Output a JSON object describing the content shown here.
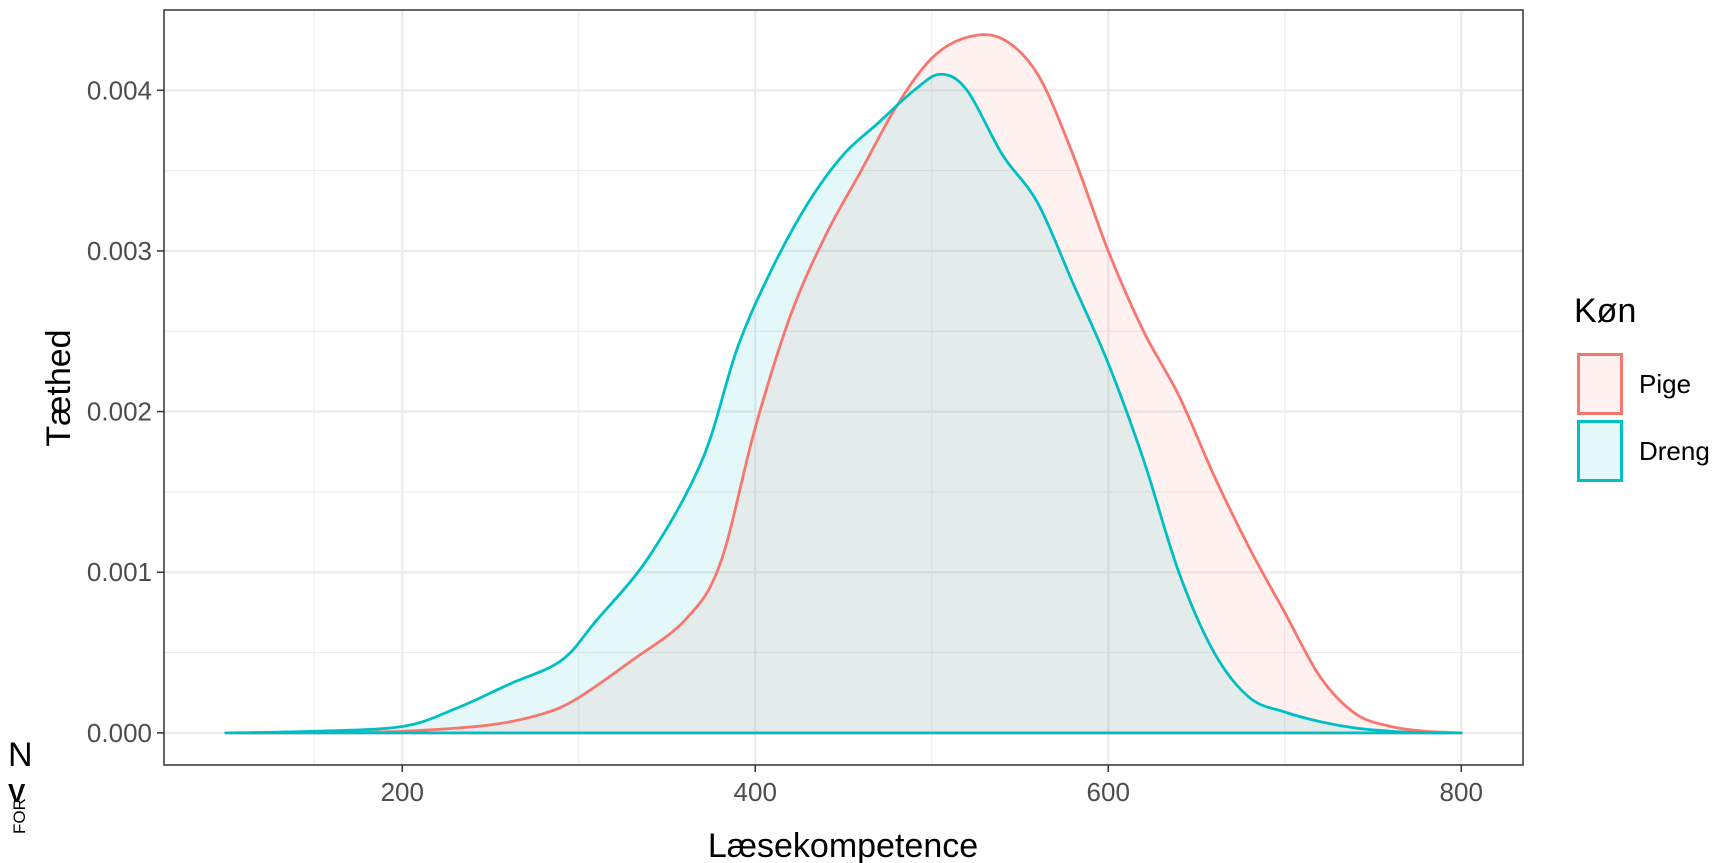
{
  "chart_data": {
    "type": "area",
    "title": "",
    "xlabel": "Læsekompetence",
    "ylabel": "Tæthed",
    "xlim": [
      65,
      835
    ],
    "ylim": [
      -0.0002,
      0.0045
    ],
    "x_ticks": [
      200,
      400,
      600,
      800
    ],
    "x_tick_labels": [
      "200",
      "400",
      "600",
      "800"
    ],
    "y_ticks": [
      0.0,
      0.001,
      0.002,
      0.003,
      0.004
    ],
    "y_tick_labels": [
      "0.000",
      "0.001",
      "0.002",
      "0.003",
      "0.004"
    ],
    "grid": true,
    "legend": {
      "title": "Køn",
      "position": "right",
      "entries": [
        "Pige",
        "Dreng"
      ]
    },
    "series": [
      {
        "name": "Pige",
        "color": "#F8766D",
        "x": [
          100,
          150,
          200,
          250,
          280,
          300,
          330,
          360,
          380,
          400,
          420,
          440,
          460,
          480,
          500,
          520,
          540,
          560,
          580,
          600,
          620,
          640,
          660,
          680,
          700,
          720,
          740,
          760,
          780,
          800
        ],
        "y": [
          0.0,
          0.0,
          1e-05,
          5e-05,
          0.00012,
          0.00022,
          0.00045,
          0.0007,
          0.00105,
          0.0019,
          0.0026,
          0.0031,
          0.0035,
          0.0039,
          0.0042,
          0.00433,
          0.00432,
          0.0041,
          0.0036,
          0.003,
          0.0025,
          0.0021,
          0.0016,
          0.00115,
          0.00075,
          0.00035,
          0.00012,
          4e-05,
          1e-05,
          0.0
        ]
      },
      {
        "name": "Dreng",
        "color": "#00BFC4",
        "x": [
          100,
          150,
          200,
          230,
          260,
          290,
          310,
          340,
          370,
          390,
          410,
          430,
          450,
          470,
          490,
          505,
          520,
          540,
          560,
          580,
          600,
          620,
          640,
          660,
          680,
          700,
          720,
          740,
          760,
          780,
          800
        ],
        "y": [
          0.0,
          1e-05,
          4e-05,
          0.00015,
          0.0003,
          0.00045,
          0.0007,
          0.0011,
          0.0017,
          0.0024,
          0.0029,
          0.0033,
          0.0036,
          0.0038,
          0.004,
          0.0041,
          0.004,
          0.0036,
          0.0033,
          0.0028,
          0.0023,
          0.0017,
          0.001,
          0.0005,
          0.00022,
          0.00013,
          7e-05,
          3e-05,
          1e-05,
          0.0,
          0.0
        ]
      }
    ]
  },
  "corner_marks": {
    "top": "N",
    "middle": "V",
    "bottom": "FOR"
  }
}
